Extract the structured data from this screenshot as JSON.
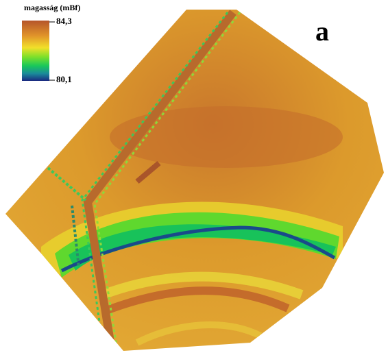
{
  "legend": {
    "title": "magasság (mBf)",
    "max_label": "84,3",
    "min_label": "80,1"
  },
  "panel_label": "a"
}
